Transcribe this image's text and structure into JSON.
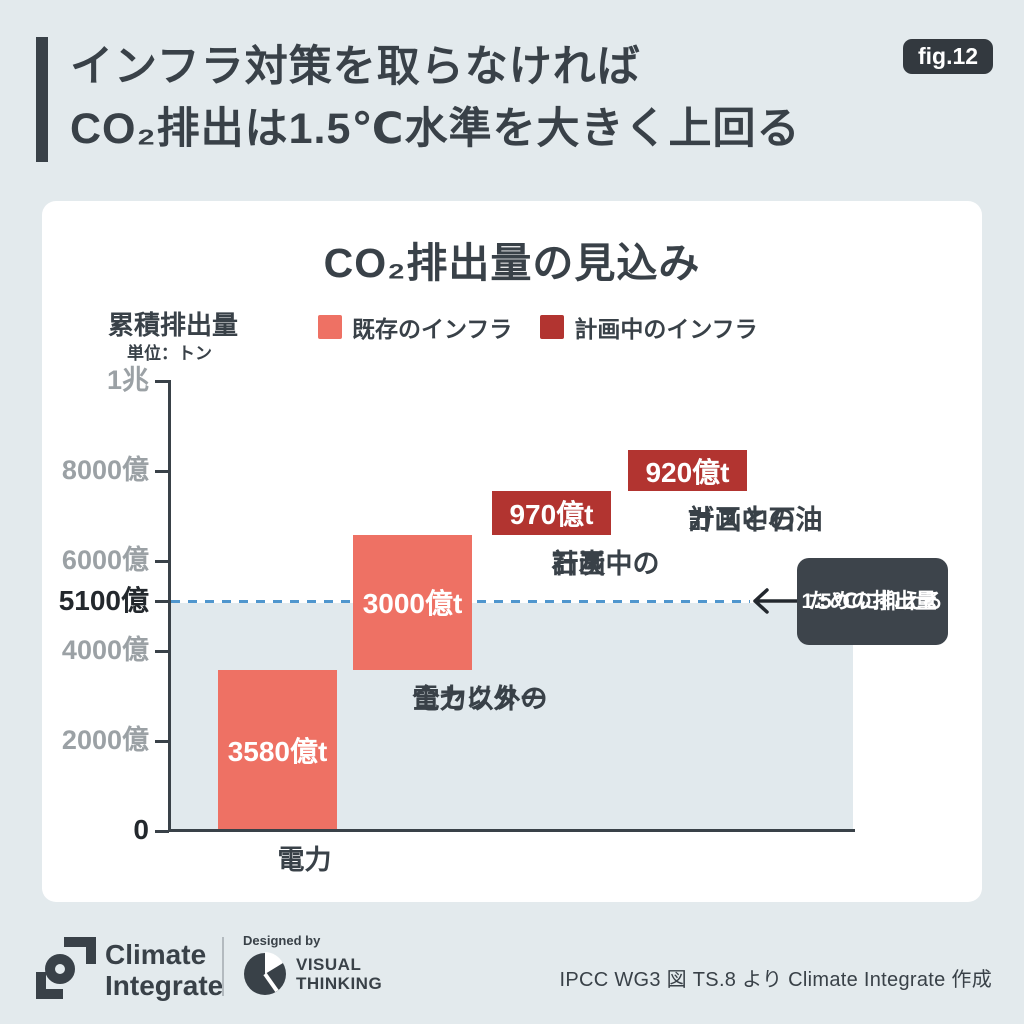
{
  "colors": {
    "page_bg": "#e3eaed",
    "card_bg": "#ffffff",
    "ink": "#394148",
    "badge_bg": "#33393f",
    "existing_infra": "#ee7164",
    "planned_infra": "#b23430",
    "tick_gray": "#9ba1a5",
    "reference_blue": "#4f96ce",
    "shade": "#e1e9ed",
    "tooltip_bg": "#3d444b"
  },
  "header": {
    "line1": "インフラ対策を取らなければ",
    "line2": "CO₂排出は1.5℃水準を大きく上回る",
    "fig_label": "fig.12"
  },
  "chart_data": {
    "type": "bar",
    "subtype": "waterfall",
    "title": "CO₂排出量の見込み",
    "y_axis_title": "累積排出量",
    "y_axis_unit": "単位：トン",
    "ylim": [
      0,
      10000
    ],
    "ylim_unit": "億トン",
    "grid": false,
    "legend_position": "top",
    "legend": [
      {
        "label": "既存のインフラ",
        "color": "#ee7164"
      },
      {
        "label": "計画中のインフラ",
        "color": "#b23430"
      }
    ],
    "y_ticks": [
      {
        "label": "1兆",
        "value": 10000,
        "emphasis": false
      },
      {
        "label": "8000億",
        "value": 8000,
        "emphasis": false
      },
      {
        "label": "6000億",
        "value": 6000,
        "emphasis": false
      },
      {
        "label": "5100億",
        "value": 5100,
        "emphasis": true
      },
      {
        "label": "4000億",
        "value": 4000,
        "emphasis": false
      },
      {
        "label": "2000億",
        "value": 2000,
        "emphasis": false
      },
      {
        "label": "0",
        "value": 0,
        "emphasis": true
      }
    ],
    "bars": [
      {
        "key": "electricity",
        "label_lines": [
          "電力"
        ],
        "value": 3580,
        "start": 0,
        "series": "既存のインフラ",
        "value_label": "3580億t"
      },
      {
        "key": "all-other-sectors",
        "label_lines": [
          "電力以外の",
          "全セクター"
        ],
        "value": 3000,
        "start": 3580,
        "series": "既存のインフラ",
        "value_label": "3000億t"
      },
      {
        "key": "planned-coal",
        "label_lines": [
          "計画中の",
          "石炭"
        ],
        "value": 970,
        "start": 6580,
        "series": "計画中のインフラ",
        "value_label": "970億t"
      },
      {
        "key": "planned-gas-oil",
        "label_lines": [
          "計画中の",
          "ガスと石油"
        ],
        "value": 920,
        "start": 7550,
        "series": "計画中のインフラ",
        "value_label": "920億t"
      }
    ],
    "reference_line": {
      "value": 5100,
      "tick_label": "5100億",
      "annotation_lines": [
        "1.5℃に抑える",
        "ための排出量"
      ]
    }
  },
  "footer": {
    "brand_line1": "Climate",
    "brand_line2": "Integrate",
    "designed_by": "Designed by",
    "designer_line1": "VISUAL",
    "designer_line2": "THINKING",
    "attribution": "IPCC WG3 図 TS.8 より Climate Integrate 作成"
  }
}
